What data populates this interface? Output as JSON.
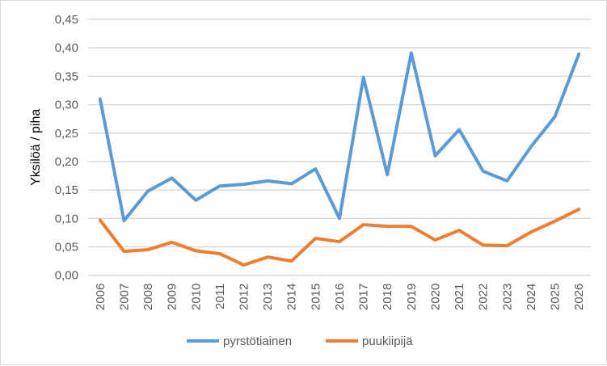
{
  "chart_data": {
    "type": "line",
    "title": "",
    "xlabel": "",
    "ylabel": "Yksilöä / piha",
    "ylim": [
      0,
      0.45
    ],
    "yticks": [
      "0,00",
      "0,05",
      "0,10",
      "0,15",
      "0,20",
      "0,25",
      "0,30",
      "0,35",
      "0,40",
      "0,45"
    ],
    "grid": true,
    "legend_position": "bottom",
    "x": [
      "2006",
      "2007",
      "2008",
      "2009",
      "2010",
      "2011",
      "2012",
      "2013",
      "2014",
      "2015",
      "2016",
      "2017",
      "2018",
      "2019",
      "2020",
      "2021",
      "2022",
      "2023",
      "2024",
      "2025",
      "2026"
    ],
    "series": [
      {
        "name": "pyrstötiainen",
        "color": "#5b9bd5",
        "values": [
          0.31,
          0.096,
          0.148,
          0.171,
          0.132,
          0.157,
          0.16,
          0.166,
          0.161,
          0.187,
          0.1,
          0.348,
          0.177,
          0.391,
          0.21,
          0.256,
          0.183,
          0.166,
          0.226,
          0.279,
          0.389
        ]
      },
      {
        "name": "puukiipijä",
        "color": "#ed7d31",
        "values": [
          0.097,
          0.042,
          0.045,
          0.058,
          0.043,
          0.038,
          0.018,
          0.032,
          0.025,
          0.065,
          0.059,
          0.089,
          0.086,
          0.086,
          0.062,
          0.079,
          0.053,
          0.052,
          0.076,
          0.095,
          0.116
        ]
      }
    ]
  }
}
